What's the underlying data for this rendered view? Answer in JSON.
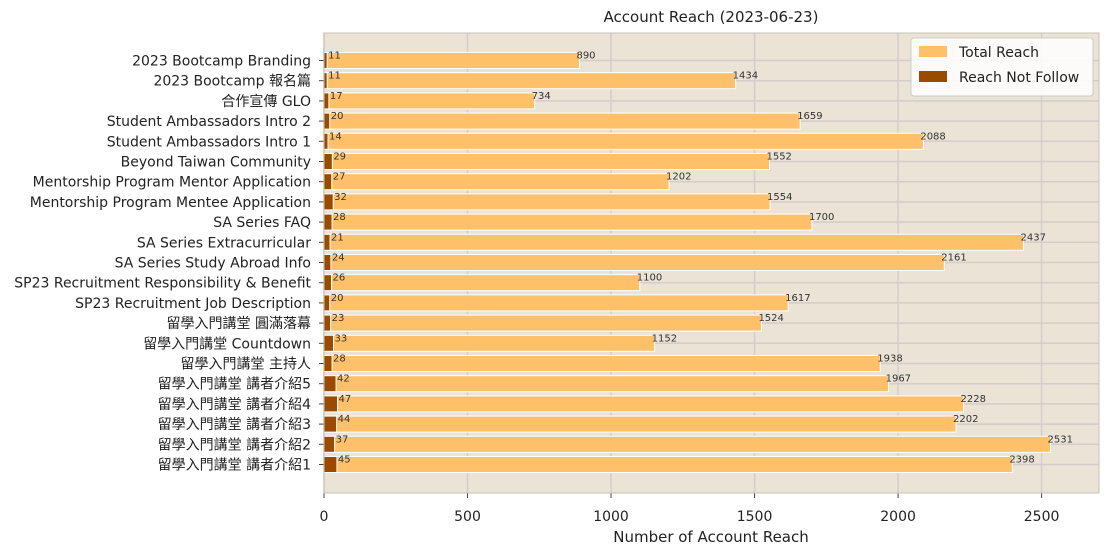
{
  "chart_data": {
    "type": "bar",
    "orientation": "horizontal",
    "title": "Account Reach (2023-06-23)",
    "xlabel": "Number of Account Reach",
    "ylabel": "",
    "xlim": [
      0,
      2700
    ],
    "xticks": [
      0,
      500,
      1000,
      1500,
      2000,
      2500
    ],
    "grid": true,
    "legend_position": "top-right",
    "categories": [
      "2023 Bootcamp Branding",
      "2023 Bootcamp 報名篇",
      "合作宣傳 GLO",
      "Student Ambassadors Intro 2",
      "Student Ambassadors Intro 1",
      "Beyond Taiwan Community",
      "Mentorship Program Mentor Application",
      "Mentorship Program Mentee Application",
      "SA Series FAQ",
      "SA Series Extracurricular",
      "SA Series Study Abroad Info",
      "SP23 Recruitment Responsibility & Benefit",
      "SP23 Recruitment Job Description",
      "留學入門講堂 圓滿落幕",
      "留學入門講堂 Countdown",
      "留學入門講堂 主持人",
      "留學入門講堂 講者介紹5",
      "留學入門講堂 講者介紹4",
      "留學入門講堂 講者介紹3",
      "留學入門講堂 講者介紹2",
      "留學入門講堂 講者介紹1"
    ],
    "series": [
      {
        "name": "Total Reach",
        "color": "#fec068",
        "values": [
          890,
          1434,
          734,
          1659,
          2088,
          1552,
          1202,
          1554,
          1700,
          2437,
          2161,
          1100,
          1617,
          1524,
          1152,
          1938,
          1967,
          2228,
          2202,
          2531,
          2398
        ]
      },
      {
        "name": "Reach Not Follow",
        "color": "#994c00",
        "values": [
          11,
          11,
          17,
          20,
          14,
          29,
          27,
          32,
          28,
          21,
          24,
          26,
          20,
          23,
          33,
          28,
          42,
          47,
          44,
          37,
          45
        ]
      }
    ]
  }
}
